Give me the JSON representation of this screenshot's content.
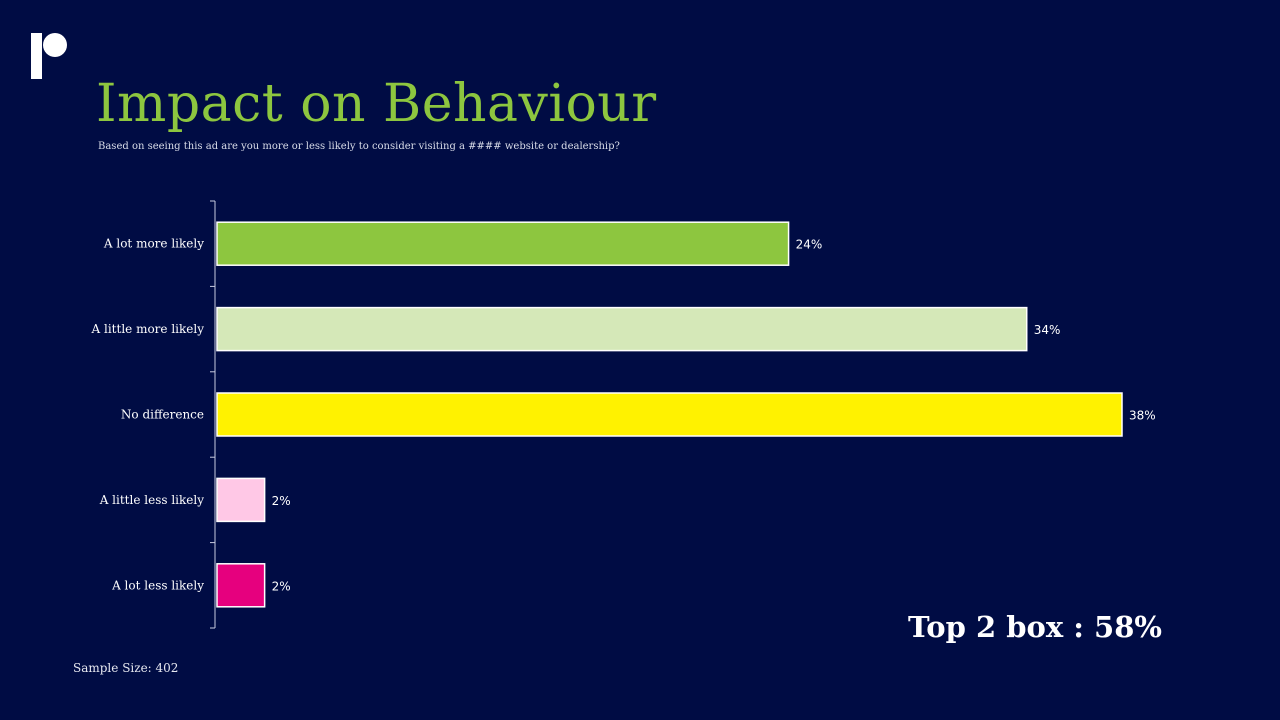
{
  "slide": {
    "title": "Impact on Behaviour",
    "subtitle": "Based on seeing this ad are you more or less likely to consider visiting a #### website or dealership?",
    "top2_box": "Top 2 box : 58%",
    "sample_size": "Sample Size: 402"
  },
  "colors": {
    "background": "#000c44",
    "title": "#8dc63f",
    "bar_outline": "#ffffff"
  },
  "chart_data": {
    "type": "bar",
    "orientation": "horizontal",
    "categories": [
      "A lot more likely",
      "A little more likely",
      "No difference",
      "A little less likely",
      "A lot less likely"
    ],
    "values": [
      24,
      34,
      38,
      2,
      2
    ],
    "data_labels": [
      "24%",
      "34%",
      "38%",
      "2%",
      "2%"
    ],
    "colors": [
      "#8dc63f",
      "#d5e8b8",
      "#fff200",
      "#ffc8e6",
      "#e6007e"
    ],
    "unit": "%",
    "xlim": [
      0,
      38
    ],
    "grid": false,
    "legend": "none"
  }
}
